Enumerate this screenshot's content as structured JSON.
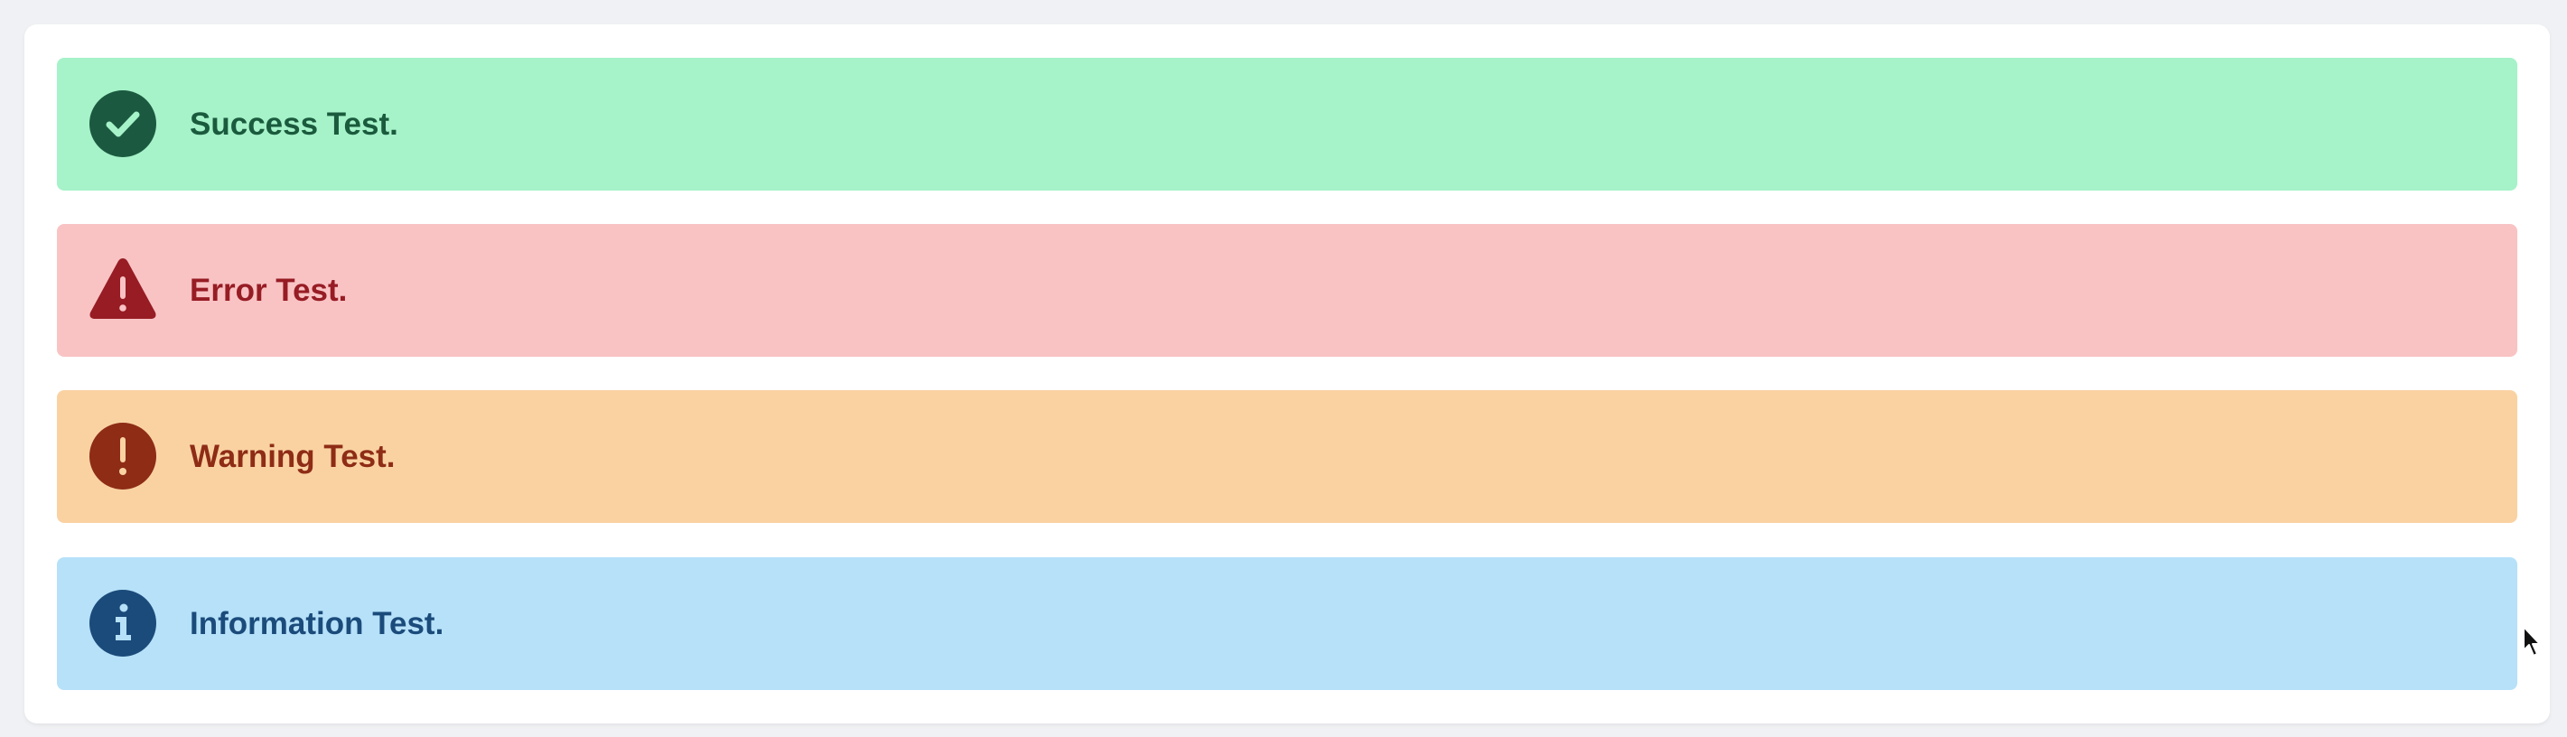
{
  "alerts": [
    {
      "kind": "success",
      "message": "Success Test.",
      "icon": "check-circle-icon",
      "colors": {
        "background": "#a6f2c9",
        "text": "#1a5a3d",
        "icon": "#1b5a40",
        "glyph": "#a6f2c9"
      }
    },
    {
      "kind": "error",
      "message": "Error Test.",
      "icon": "warning-triangle-icon",
      "colors": {
        "background": "#f9c3c4",
        "text": "#971c24",
        "icon": "#971c24",
        "glyph": "#f9c3c4"
      }
    },
    {
      "kind": "warning",
      "message": "Warning Test.",
      "icon": "exclamation-circle-icon",
      "colors": {
        "background": "#fad2a2",
        "text": "#8e2c16",
        "icon": "#8e2c16",
        "glyph": "#fad2a2"
      }
    },
    {
      "kind": "info",
      "message": "Information Test.",
      "icon": "info-circle-icon",
      "colors": {
        "background": "#b6e1f9",
        "text": "#1b4b7b",
        "icon": "#1b4b7b",
        "glyph": "#b6e1f9"
      }
    }
  ],
  "page": {
    "background": "#f0f1f4",
    "card_background": "#ffffff"
  }
}
